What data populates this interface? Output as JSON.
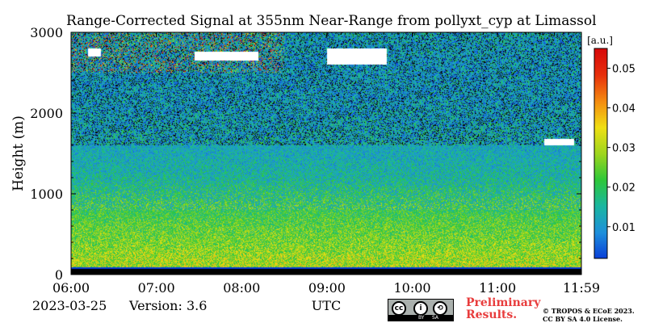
{
  "chart_data": {
    "type": "heatmap",
    "title": "Range-Corrected Signal at 355nm Near-Range from pollyxt_cyp at Limassol",
    "xlabel": "UTC",
    "ylabel": "Height (m)",
    "x_ticks": [
      "06:00",
      "07:00",
      "08:00",
      "09:00",
      "10:00",
      "11:00",
      "11:59"
    ],
    "x_range_hours": [
      6.0,
      11.983
    ],
    "y_ticks": [
      0,
      1000,
      2000,
      3000
    ],
    "y_range": [
      0,
      3000
    ],
    "colorbar": {
      "unit": "[a.u.]",
      "ticks": [
        0.01,
        0.02,
        0.03,
        0.04,
        0.05
      ],
      "range": [
        0.002,
        0.055
      ],
      "colors": [
        "#0a3fd8",
        "#1e90dc",
        "#1ab7a2",
        "#2ec83a",
        "#9fd61e",
        "#f0e014",
        "#f58c10",
        "#e8300c",
        "#d80a0a"
      ]
    },
    "profile": {
      "height_m": [
        0,
        100,
        200,
        400,
        600,
        800,
        1000,
        1200,
        1500,
        1800,
        2200,
        2600,
        3000
      ],
      "mean_signal": [
        0.0,
        0.03,
        0.029,
        0.026,
        0.024,
        0.021,
        0.018,
        0.015,
        0.013,
        0.012,
        0.011,
        0.011,
        0.012
      ]
    },
    "masked_regions": [
      {
        "start_hour": 7.45,
        "end_hour": 8.2,
        "height_min_m": 2650,
        "height_max_m": 2760
      },
      {
        "start_hour": 6.2,
        "end_hour": 6.35,
        "height_min_m": 2700,
        "height_max_m": 2800
      },
      {
        "start_hour": 9.0,
        "end_hour": 9.7,
        "height_min_m": 2600,
        "height_max_m": 2800
      },
      {
        "start_hour": 11.55,
        "end_hour": 11.9,
        "height_min_m": 1600,
        "height_max_m": 1680
      }
    ]
  },
  "footer": {
    "date": "2023-03-25",
    "version": "Version: 3.6",
    "cc_label_by": "BY",
    "cc_label_sa": "SA",
    "preliminary_line1": "Preliminary",
    "preliminary_line2": "Results.",
    "copyright_line1": "© TROPOS & ECoE 2023.",
    "copyright_line2": "CC BY SA 4.0 License."
  }
}
